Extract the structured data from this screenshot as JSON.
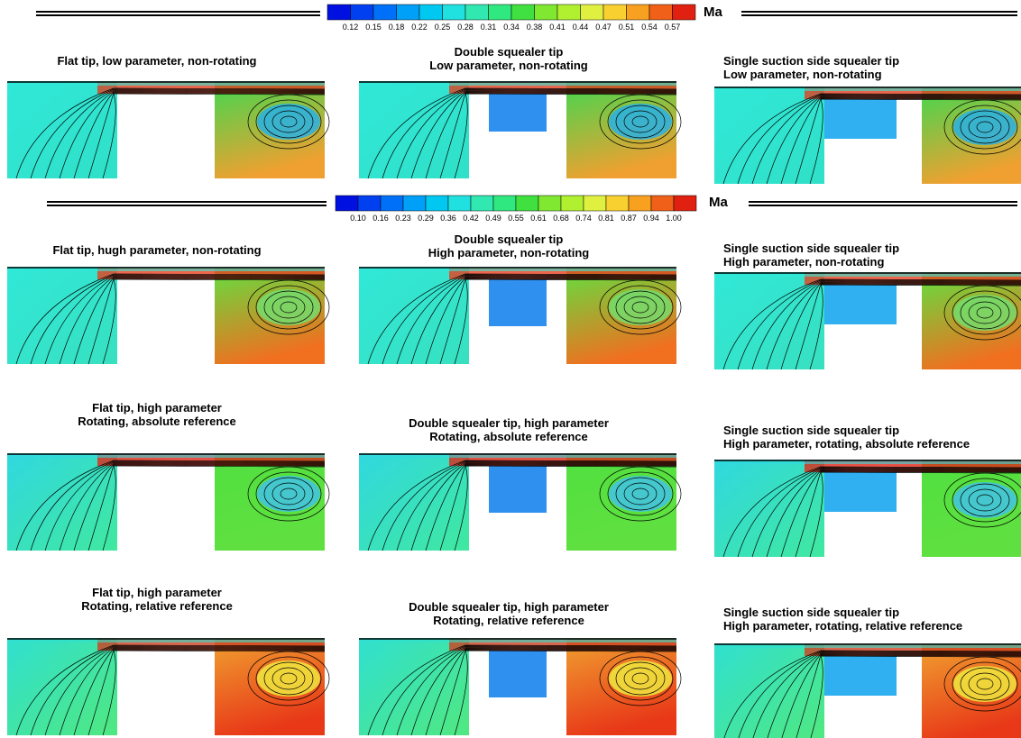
{
  "colorbars": [
    {
      "quantity": "Ma",
      "labels": [
        "0.12",
        "0.15",
        "0.18",
        "0.22",
        "0.25",
        "0.28",
        "0.31",
        "0.34",
        "0.38",
        "0.41",
        "0.44",
        "0.47",
        "0.51",
        "0.54",
        "0.57"
      ],
      "colors": [
        "#0010e0",
        "#0040f0",
        "#0070f8",
        "#00a0f8",
        "#00c8f0",
        "#20e0e0",
        "#30e8b0",
        "#30e880",
        "#40e040",
        "#80e830",
        "#b0f030",
        "#e0f040",
        "#f8d030",
        "#f8a020",
        "#f06018",
        "#e02010"
      ]
    },
    {
      "quantity": "Ma",
      "labels": [
        "0.10",
        "0.16",
        "0.23",
        "0.29",
        "0.36",
        "0.42",
        "0.49",
        "0.55",
        "0.61",
        "0.68",
        "0.74",
        "0.81",
        "0.87",
        "0.94",
        "1.00"
      ],
      "colors": [
        "#0010e0",
        "#0040f0",
        "#0070f8",
        "#00a0f8",
        "#00c8f0",
        "#20e0e0",
        "#30e8b0",
        "#30e880",
        "#40e040",
        "#80e830",
        "#b0f030",
        "#e0f040",
        "#f8d030",
        "#f8a020",
        "#f06018",
        "#e02010"
      ]
    }
  ],
  "panels": [
    {
      "title": [
        "Flat tip, low parameter, non-rotating"
      ]
    },
    {
      "title": [
        "Double squealer tip",
        "Low parameter, non-rotating"
      ]
    },
    {
      "title": [
        "Single suction side squealer tip",
        "Low parameter, non-rotating"
      ]
    },
    {
      "title": [
        "Flat tip, hugh parameter, non-rotating"
      ]
    },
    {
      "title": [
        "Double squealer tip",
        "High parameter, non-rotating"
      ]
    },
    {
      "title": [
        "Single suction side squealer tip",
        "High parameter, non-rotating"
      ]
    },
    {
      "title": [
        "Flat tip, high parameter",
        "Rotating, absolute reference"
      ]
    },
    {
      "title": [
        "Double squealer tip, high parameter",
        "Rotating, absolute reference"
      ]
    },
    {
      "title": [
        "Single suction side squealer tip",
        "High parameter, rotating, absolute reference"
      ]
    },
    {
      "title": [
        "Flat tip, high parameter",
        "Rotating, relative reference"
      ]
    },
    {
      "title": [
        "Double squealer tip, high parameter",
        "Rotating, relative reference"
      ]
    },
    {
      "title": [
        "Single suction side squealer tip",
        "High parameter, rotating, relative reference"
      ]
    }
  ]
}
